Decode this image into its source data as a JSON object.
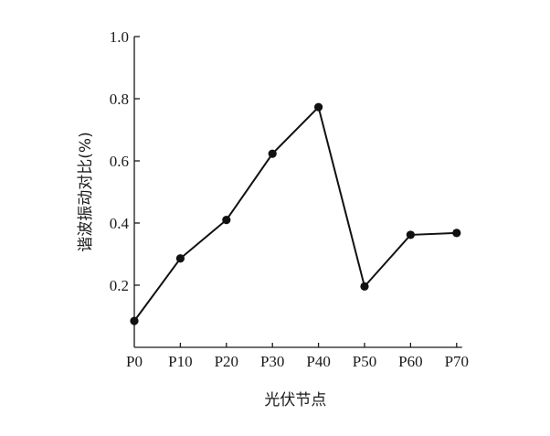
{
  "chart_data": {
    "type": "line",
    "categories": [
      "P0",
      "P10",
      "P20",
      "P30",
      "P40",
      "P50",
      "P60",
      "P70"
    ],
    "values": [
      0.085,
      0.286,
      0.41,
      0.623,
      0.773,
      0.196,
      0.362,
      0.368
    ],
    "xlabel": "光伏节点",
    "ylabel": "谐波振动对比(%)",
    "ylim": [
      0,
      1.0
    ],
    "yticks": [
      0.2,
      0.4,
      0.6,
      0.8,
      1.0
    ],
    "ytick_labels": [
      "0.2",
      "0.4",
      "0.6",
      "0.8",
      "1.0"
    ],
    "grid": false,
    "series_color": "#111111"
  }
}
